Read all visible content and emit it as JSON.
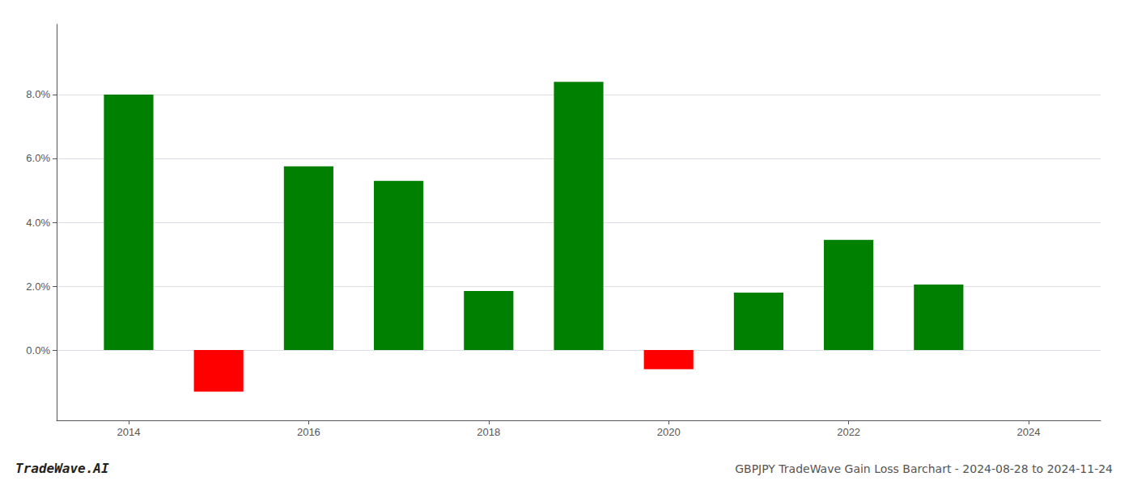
{
  "chart_data": {
    "type": "bar",
    "title": "GBPJPY TradeWave Gain Loss Barchart - 2024-08-28 to 2024-11-24",
    "annotations": [
      "TradeWave.AI"
    ],
    "x": [
      2014,
      2015,
      2016,
      2017,
      2018,
      2019,
      2020,
      2021,
      2022,
      2023
    ],
    "values": [
      0.08,
      -0.013,
      0.0575,
      0.053,
      0.0185,
      0.084,
      -0.006,
      0.018,
      0.0345,
      0.0205
    ],
    "colors": [
      "#008000",
      "#ff0000",
      "#008000",
      "#008000",
      "#008000",
      "#008000",
      "#ff0000",
      "#008000",
      "#008000",
      "#008000"
    ],
    "xlim": [
      2013.2,
      2024.8
    ],
    "xticks": [
      2014,
      2016,
      2018,
      2020,
      2022,
      2024
    ],
    "ylim": [
      -0.022,
      0.102
    ],
    "yticks": [
      {
        "value": 0.0,
        "label": "0.0%"
      },
      {
        "value": 0.02,
        "label": "2.0%"
      },
      {
        "value": 0.04,
        "label": "4.0%"
      },
      {
        "value": 0.06,
        "label": "6.0%"
      },
      {
        "value": 0.08,
        "label": "8.0%"
      }
    ],
    "grid": true
  }
}
